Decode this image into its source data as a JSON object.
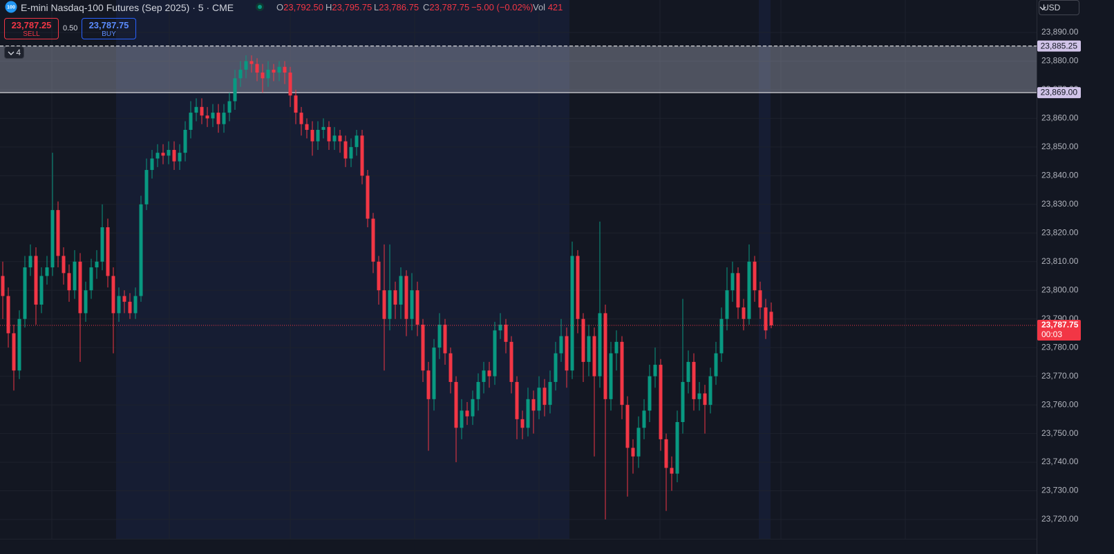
{
  "chart_data": {
    "type": "candlestick",
    "symbol_badge": "100",
    "title": "E-mini Nasdaq-100 Futures (Sep 2025) · 5 · CME",
    "quote": [
      {
        "key": "O",
        "value": "23,792.50"
      },
      {
        "key": "H",
        "value": "23,795.75"
      },
      {
        "key": "L",
        "value": "23,786.75"
      },
      {
        "key": "C",
        "value": "23,787.75"
      }
    ],
    "change": "−5.00 (−0.02%)",
    "volume_key": "Vol",
    "volume": "421",
    "sell": {
      "price": "23,787.25",
      "label": "SELL"
    },
    "spread": "0.50",
    "buy": {
      "price": "23,787.75",
      "label": "BUY"
    },
    "drawings_count": "4",
    "currency": "USD",
    "up_color": "#089981",
    "down_color": "#f23645",
    "grid": true,
    "ylim": [
      23713.25,
      23901.33
    ],
    "yticks": [
      {
        "value": 23720,
        "label": "23,720.00"
      },
      {
        "value": 23730,
        "label": "23,730.00"
      },
      {
        "value": 23740,
        "label": "23,740.00"
      },
      {
        "value": 23750,
        "label": "23,750.00"
      },
      {
        "value": 23760,
        "label": "23,760.00"
      },
      {
        "value": 23770,
        "label": "23,770.00"
      },
      {
        "value": 23780,
        "label": "23,780.00"
      },
      {
        "value": 23790,
        "label": "23,790.00"
      },
      {
        "value": 23800,
        "label": "23,800.00"
      },
      {
        "value": 23810,
        "label": "23,810.00"
      },
      {
        "value": 23820,
        "label": "23,820.00"
      },
      {
        "value": 23830,
        "label": "23,830.00"
      },
      {
        "value": 23840,
        "label": "23,840.00"
      },
      {
        "value": 23850,
        "label": "23,850.00"
      },
      {
        "value": 23860,
        "label": "23,860.00"
      },
      {
        "value": 23870,
        "label": "23,870.00"
      },
      {
        "value": 23880,
        "label": "23,880.00"
      },
      {
        "value": 23890,
        "label": "23,890.00"
      }
    ],
    "zone": {
      "top": {
        "value": 23885.25,
        "label": "23,885.25"
      },
      "bottom": {
        "value": 23869,
        "label": "23,869.00"
      }
    },
    "last_price": {
      "value": 23787.75,
      "label": "23,787.75",
      "countdown": "00:03"
    },
    "open": [
      23805,
      23798,
      23785,
      23772,
      23790,
      23808,
      23812,
      23795,
      23805,
      23808,
      23828,
      23812,
      23806,
      23800,
      23810,
      23792,
      23800,
      23808,
      23810,
      23822,
      23805,
      23792,
      23798,
      23796,
      23792,
      23798,
      23830,
      23842,
      23846,
      23848,
      23847,
      23849,
      23845,
      23848,
      23856,
      23862,
      23864,
      23861,
      23860,
      23862,
      23858,
      23862,
      23866,
      23874,
      23877,
      23880,
      23879,
      23876,
      23874,
      23877,
      23876,
      23878,
      23876,
      23868,
      23862,
      23858,
      23856,
      23852,
      23856,
      23857,
      23852,
      23854,
      23852,
      23846,
      23850,
      23854,
      23840,
      23825,
      23810,
      23800,
      23790,
      23800,
      23795,
      23805,
      23790,
      23800,
      23788,
      23772,
      23762,
      23780,
      23788,
      23778,
      23768,
      23752,
      23758,
      23756,
      23762,
      23768,
      23772,
      23770,
      23786,
      23788,
      23782,
      23768,
      23755,
      23752,
      23762,
      23758,
      23766,
      23760,
      23768,
      23778,
      23784,
      23772,
      23812,
      23790,
      23775,
      23784,
      23770,
      23792,
      23762,
      23778,
      23782,
      23760,
      23745,
      23742,
      23752,
      23758,
      23770,
      23774,
      23748,
      23738,
      23736,
      23754,
      23768,
      23775,
      23762,
      23764,
      23760,
      23770,
      23778,
      23790,
      23800,
      23806,
      23794,
      23790,
      23810,
      23800,
      23794,
      23792.5
    ],
    "high": [
      23810,
      23801,
      23788,
      23793,
      23812,
      23816,
      23815,
      23808,
      23812,
      23848,
      23831,
      23815,
      23809,
      23814,
      23813,
      23803,
      23811,
      23814,
      23830,
      23825,
      23808,
      23801,
      23800,
      23799,
      23801,
      23833,
      23846,
      23849,
      23851,
      23851,
      23852,
      23852,
      23851,
      23859,
      23866,
      23867,
      23867,
      23864,
      23865,
      23865,
      23865,
      23869,
      23877,
      23880,
      23882,
      23882,
      23881,
      23879,
      23880,
      23879,
      23880,
      23880,
      23878,
      23870,
      23864,
      23860,
      23859,
      23859,
      23860,
      23859,
      23857,
      23856,
      23854,
      23853,
      23856,
      23856,
      23842,
      23827,
      23812,
      23816,
      23816,
      23803,
      23808,
      23807,
      23806,
      23803,
      23790,
      23775,
      23783,
      23792,
      23790,
      23780,
      23770,
      23762,
      23761,
      23765,
      23771,
      23775,
      23775,
      23789,
      23792,
      23790,
      23784,
      23770,
      23758,
      23766,
      23765,
      23770,
      23769,
      23772,
      23782,
      23790,
      23787,
      23817,
      23814,
      23792,
      23788,
      23787,
      23824,
      23795,
      23782,
      23786,
      23784,
      23763,
      23748,
      23756,
      23762,
      23774,
      23780,
      23776,
      23750,
      23742,
      23758,
      23797,
      23779,
      23778,
      23768,
      23767,
      23773,
      23782,
      23794,
      23808,
      23810,
      23808,
      23797,
      23816,
      23812,
      23803,
      23797,
      23795.75
    ],
    "low": [
      23790,
      23780,
      23765,
      23769,
      23787,
      23805,
      23788,
      23792,
      23802,
      23805,
      23808,
      23802,
      23796,
      23797,
      23775,
      23789,
      23797,
      23804,
      23807,
      23801,
      23778,
      23789,
      23792,
      23790,
      23790,
      23796,
      23828,
      23839,
      23843,
      23844,
      23844,
      23842,
      23842,
      23845,
      23853,
      23859,
      23858,
      23857,
      23857,
      23855,
      23855,
      23859,
      23863,
      23871,
      23874,
      23876,
      23873,
      23869,
      23871,
      23873,
      23873,
      23872,
      23864,
      23858,
      23854,
      23853,
      23847,
      23849,
      23853,
      23849,
      23849,
      23848,
      23843,
      23843,
      23847,
      23837,
      23822,
      23806,
      23795,
      23772,
      23786,
      23790,
      23790,
      23784,
      23786,
      23784,
      23768,
      23744,
      23758,
      23776,
      23774,
      23764,
      23740,
      23748,
      23753,
      23753,
      23758,
      23764,
      23766,
      23767,
      23783,
      23778,
      23764,
      23748,
      23748,
      23749,
      23750,
      23755,
      23756,
      23757,
      23765,
      23775,
      23766,
      23769,
      23785,
      23768,
      23770,
      23742,
      23766,
      23720,
      23758,
      23772,
      23755,
      23728,
      23736,
      23738,
      23748,
      23754,
      23766,
      23744,
      23723,
      23730,
      23733,
      23750,
      23764,
      23758,
      23758,
      23750,
      23757,
      23767,
      23775,
      23786,
      23796,
      23790,
      23786,
      23788,
      23796,
      23790,
      23783,
      23786.75
    ],
    "close": [
      23798,
      23785,
      23772,
      23790,
      23808,
      23812,
      23795,
      23805,
      23808,
      23828,
      23812,
      23806,
      23800,
      23810,
      23792,
      23800,
      23808,
      23810,
      23822,
      23805,
      23792,
      23798,
      23796,
      23792,
      23798,
      23830,
      23842,
      23846,
      23848,
      23847,
      23849,
      23845,
      23848,
      23856,
      23862,
      23864,
      23861,
      23860,
      23862,
      23858,
      23862,
      23866,
      23874,
      23877,
      23880,
      23879,
      23876,
      23874,
      23877,
      23876,
      23878,
      23876,
      23868,
      23862,
      23858,
      23856,
      23852,
      23856,
      23857,
      23852,
      23854,
      23852,
      23846,
      23850,
      23854,
      23840,
      23825,
      23810,
      23800,
      23790,
      23800,
      23795,
      23805,
      23790,
      23800,
      23788,
      23772,
      23762,
      23780,
      23788,
      23778,
      23768,
      23752,
      23758,
      23756,
      23762,
      23768,
      23772,
      23770,
      23786,
      23788,
      23782,
      23768,
      23755,
      23752,
      23762,
      23758,
      23766,
      23760,
      23768,
      23778,
      23784,
      23772,
      23812,
      23790,
      23775,
      23784,
      23770,
      23792,
      23762,
      23778,
      23782,
      23760,
      23745,
      23742,
      23752,
      23758,
      23770,
      23774,
      23748,
      23738,
      23736,
      23754,
      23768,
      23775,
      23762,
      23764,
      23760,
      23770,
      23778,
      23790,
      23800,
      23806,
      23794,
      23790,
      23810,
      23800,
      23794,
      23786,
      23787.75
    ]
  }
}
